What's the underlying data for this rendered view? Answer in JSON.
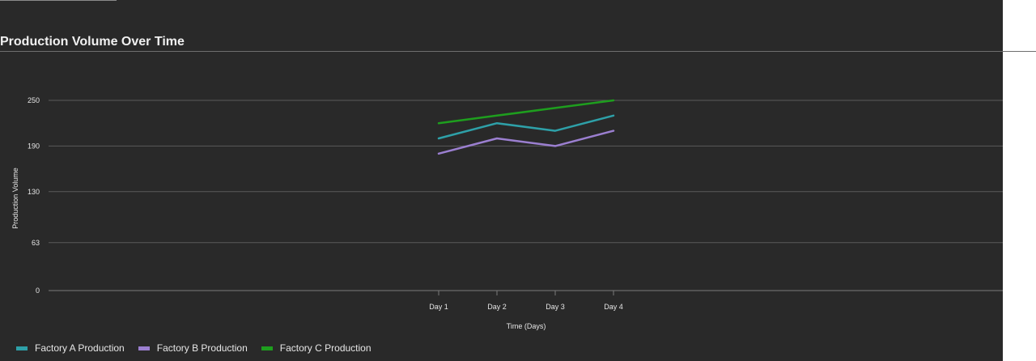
{
  "chart_data": {
    "type": "line",
    "title": "Production Volume Over Time",
    "xlabel": "Time (Days)",
    "ylabel": "Production Volume",
    "categories": [
      "Day 1",
      "Day 2",
      "Day 3",
      "Day 4"
    ],
    "y_ticks": [
      "0",
      "63",
      "130",
      "190",
      "250"
    ],
    "ylim": [
      0,
      250
    ],
    "grid": true,
    "legend_position": "bottom-left",
    "series": [
      {
        "name": "Factory A Production",
        "color": "#2ea0a8",
        "values": [
          200,
          220,
          210,
          230
        ]
      },
      {
        "name": "Factory B Production",
        "color": "#9b7fd0",
        "values": [
          180,
          200,
          190,
          210
        ]
      },
      {
        "name": "Factory C Production",
        "color": "#1e9e1e",
        "values": [
          220,
          230,
          240,
          250
        ]
      }
    ]
  }
}
